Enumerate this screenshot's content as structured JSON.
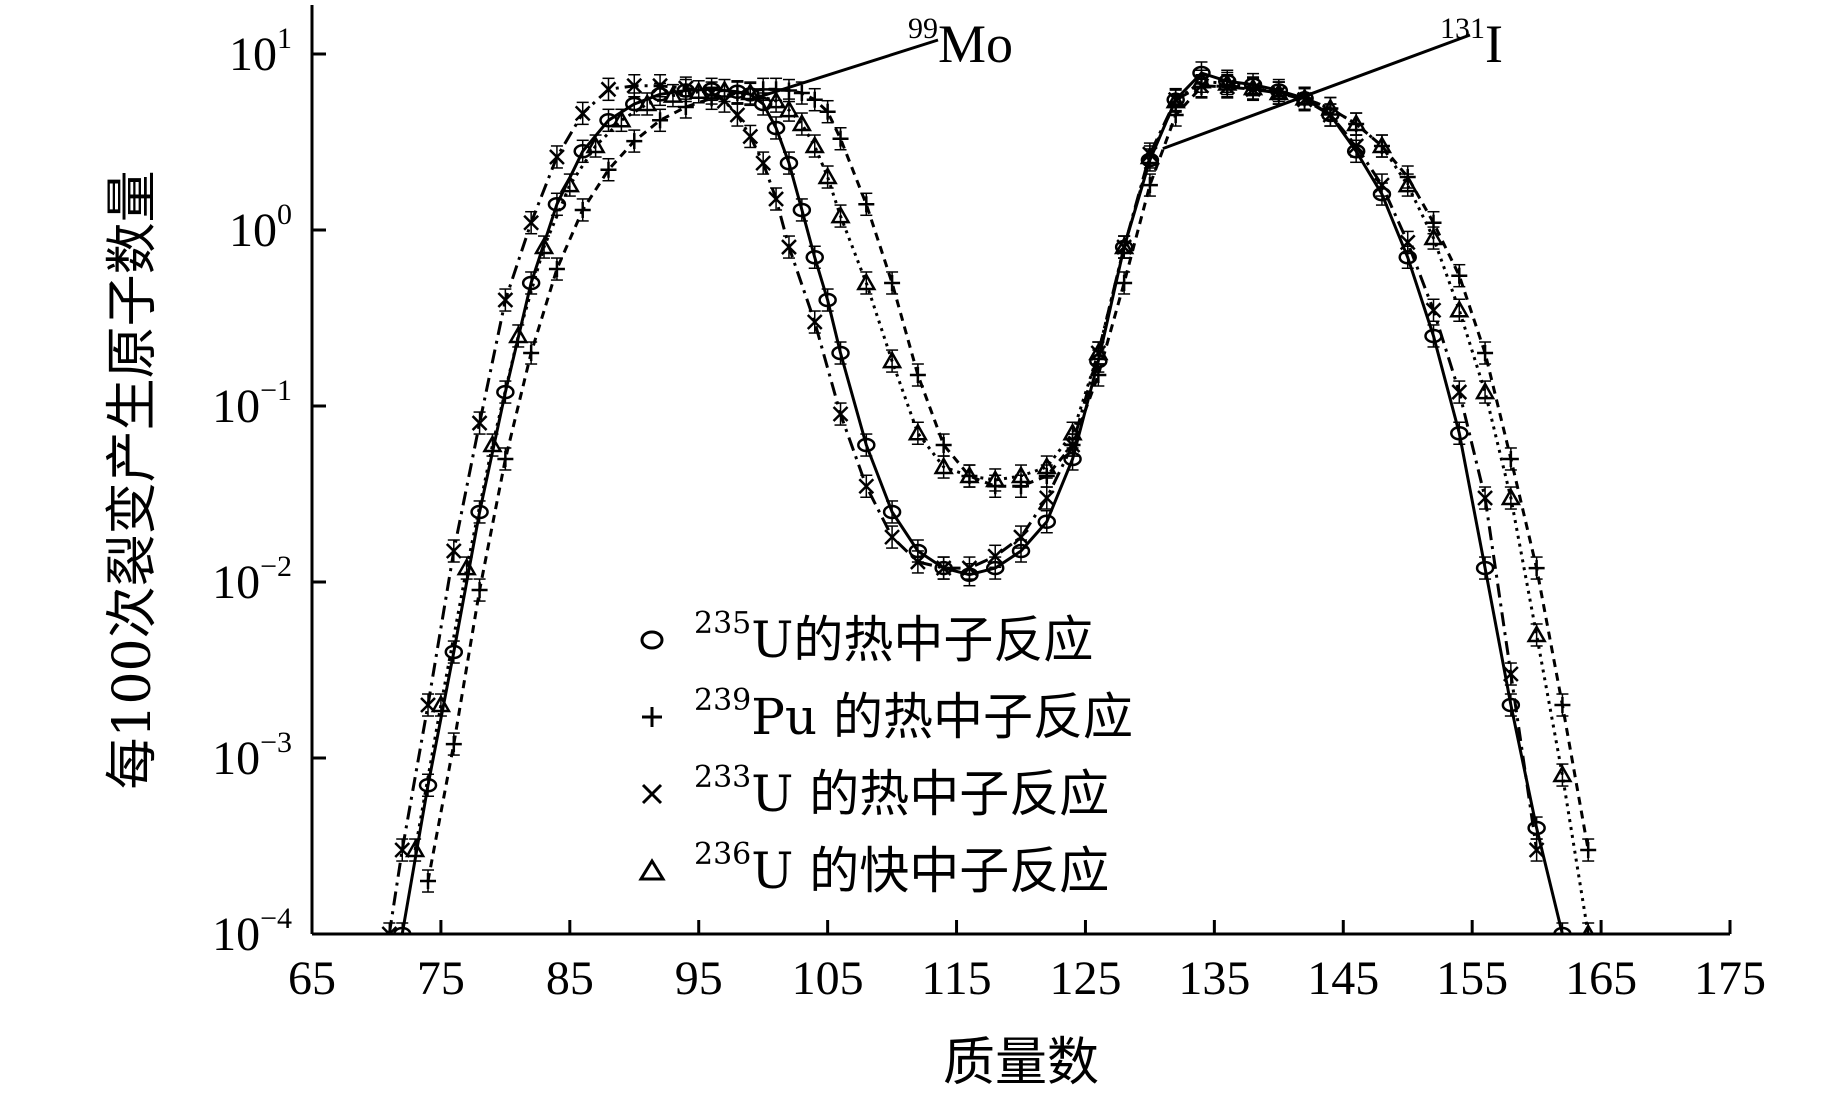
{
  "chart_data": {
    "type": "line",
    "xlabel": "质量数",
    "ylabel": "每100次裂变产生原子数量",
    "xlim": [
      65,
      175
    ],
    "xticks": [
      65,
      75,
      85,
      95,
      105,
      115,
      125,
      135,
      145,
      155,
      165,
      175
    ],
    "yscale": "log",
    "ylim": [
      0.0001,
      15
    ],
    "yticks": [
      {
        "value": 10,
        "base": "10",
        "exp": "1"
      },
      {
        "value": 1,
        "base": "10",
        "exp": "0"
      },
      {
        "value": 0.1,
        "base": "10",
        "exp": "−1"
      },
      {
        "value": 0.01,
        "base": "10",
        "exp": "−2"
      },
      {
        "value": 0.001,
        "base": "10",
        "exp": "−3"
      },
      {
        "value": 0.0001,
        "base": "10",
        "exp": "−4"
      }
    ],
    "legend_position": "bottom-center",
    "annotations": [
      {
        "sup": "99",
        "label": "Mo",
        "x": 99,
        "y": 5.5
      },
      {
        "sup": "131",
        "label": "I",
        "x": 131,
        "y": 2.9
      }
    ],
    "series": [
      {
        "name_sup": "235",
        "name_main": "U的热中子反应",
        "marker": "circle",
        "dash": "",
        "x": [
          72,
          74,
          76,
          78,
          80,
          82,
          84,
          86,
          88,
          90,
          92,
          94,
          96,
          98,
          99,
          100,
          101,
          102,
          103,
          104,
          105,
          106,
          108,
          110,
          112,
          114,
          116,
          118,
          120,
          122,
          124,
          126,
          128,
          130,
          132,
          134,
          136,
          138,
          140,
          142,
          144,
          146,
          148,
          150,
          152,
          154,
          156,
          158,
          160,
          162
        ],
        "y": [
          0.0001,
          0.0007,
          0.004,
          0.025,
          0.12,
          0.5,
          1.4,
          2.8,
          4.2,
          5.2,
          5.9,
          6.2,
          6.3,
          6.1,
          5.9,
          5.2,
          3.8,
          2.4,
          1.3,
          0.7,
          0.4,
          0.2,
          0.06,
          0.025,
          0.015,
          0.012,
          0.011,
          0.012,
          0.015,
          0.022,
          0.05,
          0.18,
          0.8,
          2.5,
          5.5,
          7.8,
          7.0,
          6.7,
          6.2,
          5.6,
          4.5,
          2.8,
          1.6,
          0.7,
          0.25,
          0.07,
          0.012,
          0.002,
          0.0004,
          0.0001
        ]
      },
      {
        "name_sup": "239",
        "name_main": "Pu 的热中子反应",
        "marker": "plus",
        "dash": "8 6",
        "x": [
          74,
          76,
          78,
          80,
          82,
          84,
          86,
          88,
          90,
          92,
          94,
          96,
          98,
          100,
          101,
          102,
          103,
          104,
          105,
          106,
          108,
          110,
          112,
          114,
          116,
          118,
          120,
          122,
          124,
          126,
          128,
          130,
          132,
          134,
          136,
          138,
          140,
          142,
          144,
          146,
          148,
          150,
          152,
          154,
          156,
          158,
          160,
          162,
          164
        ],
        "y": [
          0.0002,
          0.0012,
          0.009,
          0.05,
          0.2,
          0.6,
          1.3,
          2.2,
          3.2,
          4.2,
          5.0,
          5.6,
          6.0,
          6.3,
          6.3,
          6.2,
          6.0,
          5.5,
          4.7,
          3.3,
          1.4,
          0.5,
          0.15,
          0.06,
          0.04,
          0.035,
          0.035,
          0.04,
          0.06,
          0.15,
          0.5,
          1.8,
          4.5,
          6.5,
          6.6,
          6.4,
          6.0,
          5.6,
          4.9,
          4.0,
          3.0,
          2.0,
          1.1,
          0.55,
          0.2,
          0.05,
          0.012,
          0.002,
          0.0003
        ]
      },
      {
        "name_sup": "233",
        "name_main": "U 的热中子反应",
        "marker": "x",
        "dash": "14 6 3 6",
        "x": [
          71,
          72,
          74,
          76,
          78,
          80,
          82,
          84,
          86,
          88,
          90,
          92,
          94,
          96,
          97,
          98,
          99,
          100,
          101,
          102,
          104,
          106,
          108,
          110,
          112,
          114,
          116,
          118,
          120,
          122,
          124,
          126,
          128,
          130,
          132,
          134,
          136,
          138,
          140,
          142,
          144,
          146,
          148,
          150,
          152,
          154,
          156,
          158,
          160
        ],
        "y": [
          0.0001,
          0.0003,
          0.002,
          0.015,
          0.08,
          0.4,
          1.1,
          2.6,
          4.6,
          6.3,
          6.6,
          6.6,
          6.4,
          6.0,
          5.4,
          4.5,
          3.4,
          2.4,
          1.5,
          0.8,
          0.3,
          0.09,
          0.035,
          0.018,
          0.013,
          0.012,
          0.012,
          0.014,
          0.018,
          0.03,
          0.06,
          0.2,
          0.8,
          2.7,
          5.5,
          6.6,
          6.5,
          6.3,
          6.0,
          5.5,
          4.5,
          3.0,
          1.8,
          0.85,
          0.35,
          0.12,
          0.03,
          0.003,
          0.0003
        ]
      },
      {
        "name_sup": "236",
        "name_main": "U 的快中子反应",
        "marker": "triangle",
        "dash": "3 5",
        "x": [
          73,
          75,
          77,
          79,
          81,
          83,
          85,
          87,
          89,
          91,
          93,
          95,
          97,
          99,
          101,
          102,
          103,
          104,
          105,
          106,
          108,
          110,
          112,
          114,
          116,
          118,
          120,
          122,
          124,
          126,
          128,
          130,
          132,
          134,
          136,
          138,
          140,
          142,
          144,
          146,
          148,
          150,
          152,
          154,
          156,
          158,
          160,
          162,
          164
        ],
        "y": [
          0.0003,
          0.002,
          0.012,
          0.06,
          0.25,
          0.8,
          1.8,
          3.0,
          4.2,
          5.2,
          5.8,
          6.1,
          6.2,
          6.0,
          5.4,
          4.8,
          4.0,
          3.0,
          2.0,
          1.2,
          0.5,
          0.18,
          0.07,
          0.045,
          0.04,
          0.038,
          0.04,
          0.045,
          0.07,
          0.2,
          0.8,
          2.6,
          5.4,
          7.0,
          6.8,
          6.4,
          6.0,
          5.6,
          4.9,
          4.0,
          3.0,
          1.8,
          0.9,
          0.35,
          0.12,
          0.03,
          0.005,
          0.0008,
          0.0001
        ]
      }
    ]
  }
}
